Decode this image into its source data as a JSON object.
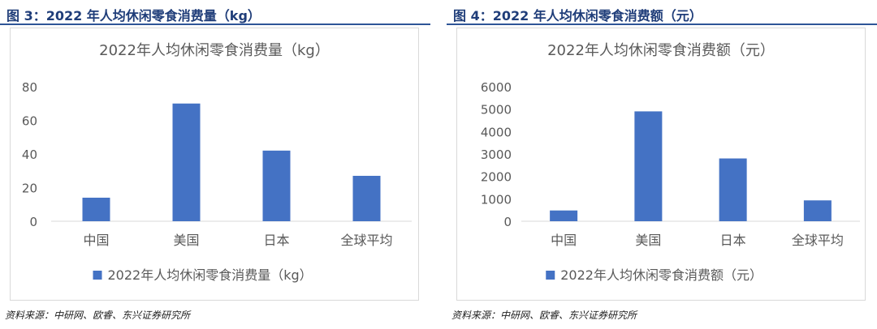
{
  "figures": [
    {
      "fig_title": "图 3：2022 年人均休闲零食消费量（kg）",
      "source": "资料来源：中研网、欧睿、东兴证券研究所",
      "chart_data": {
        "type": "bar",
        "title": "2022年人均休闲零食消费量（kg）",
        "categories": [
          "中国",
          "美国",
          "日本",
          "全球平均"
        ],
        "series": [
          {
            "name": "2022年人均休闲零食消费量（kg）",
            "values": [
              14,
              70,
              42,
              27
            ]
          }
        ],
        "ylim": [
          0,
          80
        ],
        "yticks": [
          "0",
          "20",
          "40",
          "60",
          "80"
        ],
        "grid": false,
        "legend": "bottom",
        "bar_color": "#4472C4"
      }
    },
    {
      "fig_title": "图 4：2022 年人均休闲零食消费额（元）",
      "source": "资料来源：中研网、欧睿、东兴证券研究所",
      "chart_data": {
        "type": "bar",
        "title": "2022年人均休闲零食消费额（元）",
        "categories": [
          "中国",
          "美国",
          "日本",
          "全球平均"
        ],
        "series": [
          {
            "name": "2022年人均休闲零食消费额（元）",
            "values": [
              480,
              4900,
              2800,
              930
            ]
          }
        ],
        "ylim": [
          0,
          6000
        ],
        "yticks": [
          "0",
          "1000",
          "2000",
          "3000",
          "4000",
          "5000",
          "6000"
        ],
        "grid": false,
        "legend": "bottom",
        "bar_color": "#4472C4"
      }
    }
  ]
}
